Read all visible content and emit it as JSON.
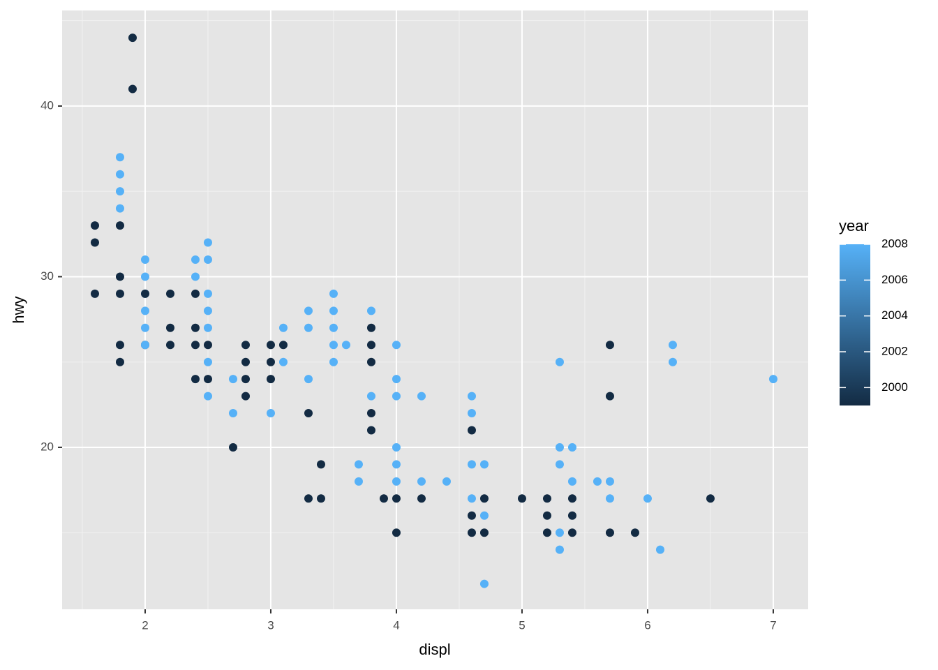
{
  "chart_data": {
    "type": "scatter",
    "x_label": "displ",
    "y_label": "hwy",
    "xlim": [
      1.339,
      7.278
    ],
    "ylim": [
      10.51,
      45.6
    ],
    "xticks": [
      2,
      3,
      4,
      5,
      6,
      7
    ],
    "yticks": [
      20,
      30,
      40
    ],
    "grid": true,
    "x": [
      1.6,
      1.6,
      1.6,
      1.8,
      1.8,
      1.8,
      1.8,
      1.8,
      1.8,
      1.8,
      1.8,
      1.8,
      1.9,
      1.9,
      2.0,
      2.0,
      2.0,
      2.0,
      2.0,
      2.0,
      2.0,
      2.0,
      2.2,
      2.2,
      2.2,
      2.4,
      2.4,
      2.4,
      2.4,
      2.4,
      2.4,
      2.5,
      2.5,
      2.5,
      2.5,
      2.5,
      2.5,
      2.5,
      2.5,
      2.5,
      2.7,
      2.7,
      2.7,
      2.8,
      2.8,
      2.8,
      2.8,
      3.0,
      3.0,
      3.0,
      3.0,
      3.1,
      3.1,
      3.1,
      3.3,
      3.3,
      3.3,
      3.3,
      3.3,
      3.4,
      3.4,
      3.5,
      3.5,
      3.5,
      3.5,
      3.5,
      3.6,
      3.7,
      3.7,
      3.8,
      3.8,
      3.8,
      3.8,
      3.8,
      3.8,
      3.8,
      3.9,
      4.0,
      4.0,
      4.0,
      4.0,
      4.0,
      4.0,
      4.0,
      4.0,
      4.2,
      4.2,
      4.2,
      4.4,
      4.6,
      4.6,
      4.6,
      4.6,
      4.6,
      4.6,
      4.6,
      4.7,
      4.7,
      4.7,
      4.7,
      4.7,
      5.0,
      5.2,
      5.2,
      5.2,
      5.3,
      5.3,
      5.3,
      5.3,
      5.3,
      5.4,
      5.4,
      5.4,
      5.4,
      5.4,
      5.6,
      5.7,
      5.7,
      5.7,
      5.7,
      5.7,
      5.9,
      6.0,
      6.1,
      6.2,
      6.2,
      6.5,
      7.0
    ],
    "y": [
      33,
      32,
      29,
      37,
      36,
      35,
      34,
      33,
      30,
      29,
      26,
      25,
      44,
      41,
      31,
      30,
      29,
      29,
      28,
      27,
      26,
      26,
      29,
      27,
      26,
      31,
      30,
      29,
      27,
      26,
      24,
      32,
      31,
      29,
      28,
      27,
      26,
      25,
      24,
      23,
      24,
      22,
      20,
      26,
      25,
      24,
      23,
      26,
      25,
      24,
      22,
      27,
      26,
      25,
      28,
      27,
      24,
      22,
      17,
      19,
      17,
      29,
      28,
      27,
      26,
      25,
      26,
      19,
      18,
      28,
      27,
      26,
      25,
      23,
      22,
      21,
      17,
      26,
      24,
      23,
      20,
      19,
      18,
      17,
      15,
      23,
      18,
      17,
      18,
      23,
      22,
      21,
      19,
      17,
      16,
      15,
      19,
      17,
      16,
      15,
      12,
      17,
      17,
      16,
      15,
      25,
      20,
      19,
      15,
      14,
      20,
      18,
      17,
      16,
      15,
      18,
      26,
      23,
      18,
      17,
      15,
      15,
      17,
      14,
      26,
      25,
      17,
      24
    ],
    "year": [
      1999,
      1999,
      1999,
      2008,
      2008,
      2008,
      2008,
      1999,
      1999,
      1999,
      1999,
      1999,
      1999,
      1999,
      2008,
      2008,
      2008,
      1999,
      2008,
      2008,
      1999,
      2008,
      1999,
      1999,
      1999,
      2008,
      2008,
      1999,
      1999,
      1999,
      1999,
      2008,
      2008,
      2008,
      2008,
      2008,
      1999,
      2008,
      1999,
      2008,
      2008,
      2008,
      1999,
      1999,
      1999,
      1999,
      1999,
      1999,
      1999,
      1999,
      2008,
      2008,
      1999,
      2008,
      2008,
      2008,
      2008,
      1999,
      1999,
      1999,
      1999,
      2008,
      2008,
      2008,
      2008,
      2008,
      2008,
      2008,
      2008,
      2008,
      1999,
      1999,
      1999,
      2008,
      1999,
      1999,
      1999,
      2008,
      2008,
      2008,
      2008,
      2008,
      2008,
      1999,
      1999,
      2008,
      2008,
      1999,
      2008,
      2008,
      2008,
      1999,
      2008,
      2008,
      1999,
      1999,
      2008,
      1999,
      2008,
      1999,
      2008,
      1999,
      1999,
      1999,
      1999,
      2008,
      2008,
      2008,
      2008,
      2008,
      2008,
      2008,
      1999,
      1999,
      1999,
      2008,
      1999,
      1999,
      2008,
      2008,
      1999,
      1999,
      2008,
      2008,
      2008,
      2008,
      1999,
      2008
    ],
    "color_scale": {
      "title": "year",
      "lim": [
        1999,
        2008
      ],
      "ticks": [
        2000,
        2002,
        2004,
        2006,
        2008
      ],
      "low": "#132B43",
      "high": "#56B1F7"
    }
  }
}
